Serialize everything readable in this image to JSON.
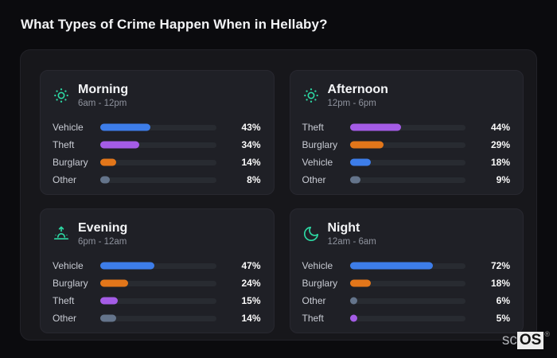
{
  "page": {
    "title": "What Types of Crime Happen When in Hellaby?"
  },
  "watermark": {
    "prefix": "sc",
    "boxed": "OS",
    "registered": "®"
  },
  "colors": {
    "icon_accent": "#2dd9a4",
    "bar_track": "#282b31",
    "categories": {
      "Vehicle": "#3d7de9",
      "Theft": "#a45ce6",
      "Burglary": "#e2761a",
      "Other": "#64748b"
    }
  },
  "chart_data": [
    {
      "type": "bar",
      "title": "Morning",
      "subtitle": "6am - 12pm",
      "icon": "sun-dots-icon",
      "unit": "%",
      "xlim": [
        0,
        100
      ],
      "categories": [
        "Vehicle",
        "Theft",
        "Burglary",
        "Other"
      ],
      "values": [
        43,
        34,
        14,
        8
      ]
    },
    {
      "type": "bar",
      "title": "Afternoon",
      "subtitle": "12pm - 6pm",
      "icon": "sun-dots-icon",
      "unit": "%",
      "xlim": [
        0,
        100
      ],
      "categories": [
        "Theft",
        "Burglary",
        "Vehicle",
        "Other"
      ],
      "values": [
        44,
        29,
        18,
        9
      ]
    },
    {
      "type": "bar",
      "title": "Evening",
      "subtitle": "6pm - 12am",
      "icon": "sunrise-icon",
      "unit": "%",
      "xlim": [
        0,
        100
      ],
      "categories": [
        "Vehicle",
        "Burglary",
        "Theft",
        "Other"
      ],
      "values": [
        47,
        24,
        15,
        14
      ]
    },
    {
      "type": "bar",
      "title": "Night",
      "subtitle": "12am - 6am",
      "icon": "moon-icon",
      "unit": "%",
      "xlim": [
        0,
        100
      ],
      "categories": [
        "Vehicle",
        "Burglary",
        "Other",
        "Theft"
      ],
      "values": [
        72,
        18,
        6,
        5
      ]
    }
  ]
}
